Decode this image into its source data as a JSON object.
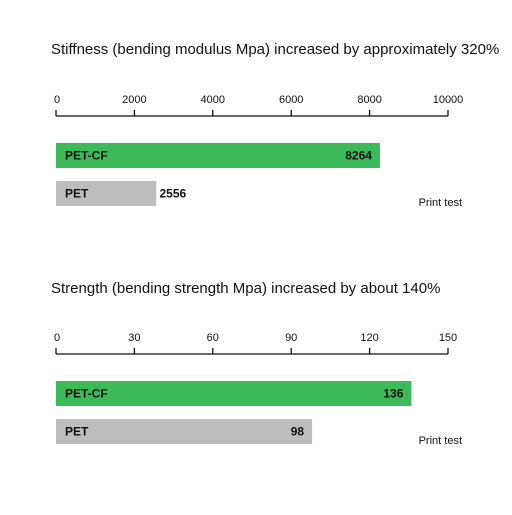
{
  "chart_data": [
    {
      "type": "bar",
      "orientation": "horizontal",
      "title": "Stiffness (bending modulus Mpa) increased by approximately 320%",
      "xlim": [
        0,
        10000
      ],
      "ticks": [
        0,
        2000,
        4000,
        6000,
        8000,
        10000
      ],
      "categories": [
        "PET-CF",
        "PET"
      ],
      "values": [
        8264,
        2556
      ],
      "note": "Print test"
    },
    {
      "type": "bar",
      "orientation": "horizontal",
      "title": "Strength (bending strength Mpa) increased by about 140%",
      "xlim": [
        0,
        150
      ],
      "ticks": [
        0,
        30,
        60,
        90,
        120,
        150
      ],
      "categories": [
        "PET-CF",
        "PET"
      ],
      "values": [
        136,
        98
      ],
      "note": "Print test"
    }
  ],
  "colors": {
    "pet_cf": "#3cba5a",
    "pet": "#bdbdbd",
    "axis": "#111111"
  }
}
